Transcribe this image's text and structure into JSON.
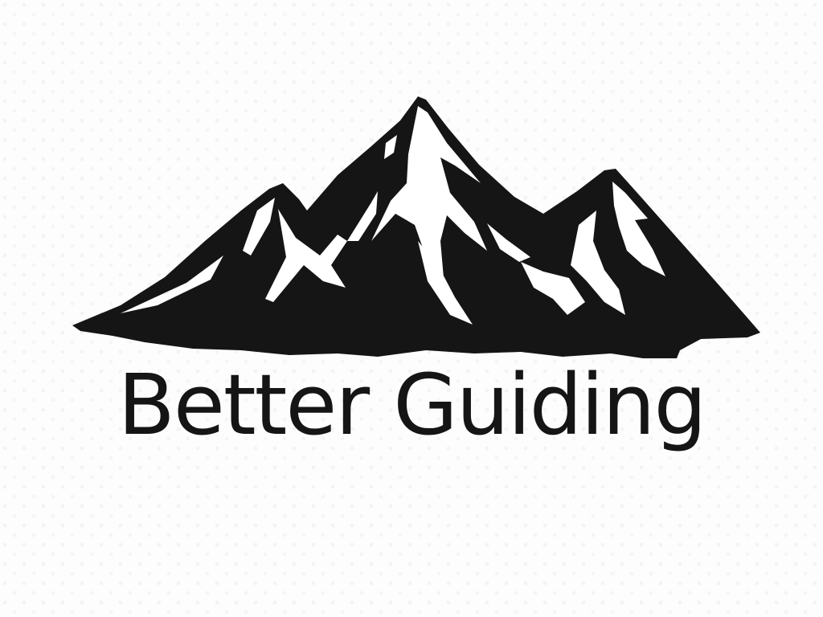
{
  "logo": {
    "wordmark": "Better Guiding",
    "icon": "mountain-range-icon",
    "colors": {
      "ink": "#151515",
      "snow": "#ffffff",
      "background": "#fdfdfd"
    }
  }
}
